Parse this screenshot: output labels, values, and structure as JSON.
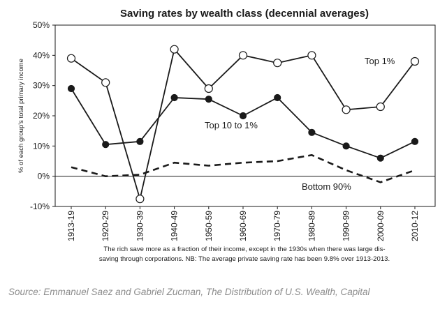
{
  "chart_data": {
    "type": "line",
    "title": "Saving rates by wealth class (decennial averages)",
    "ylabel": "% of each group's total primary income",
    "xlabel": "",
    "ylim": [
      -10,
      50
    ],
    "y_ticks": [
      "-10%",
      "0%",
      "10%",
      "20%",
      "30%",
      "40%",
      "50%"
    ],
    "y_tick_values": [
      -10,
      0,
      10,
      20,
      30,
      40,
      50
    ],
    "categories": [
      "1913-19",
      "1920-29",
      "1930-39",
      "1940-49",
      "1950-59",
      "1960-69",
      "1970-79",
      "1980-89",
      "1990-99",
      "2000-09",
      "2010-12"
    ],
    "grid": false,
    "series": [
      {
        "name": "Top 1%",
        "marker": "open-circle",
        "line": "solid",
        "values": [
          39,
          31,
          -7.5,
          42,
          29,
          40,
          37.5,
          40,
          22,
          23,
          38
        ]
      },
      {
        "name": "Top 10 to 1%",
        "marker": "filled-circle",
        "line": "solid",
        "values": [
          29,
          10.5,
          11.5,
          26,
          25.5,
          20,
          26,
          14.5,
          10,
          6,
          11.5
        ]
      },
      {
        "name": "Bottom 90%",
        "marker": "none",
        "line": "dashed",
        "values": [
          3,
          0,
          0.5,
          4.5,
          3.5,
          4.5,
          5,
          7,
          2,
          -2,
          2
        ]
      }
    ],
    "note_lines": [
      "The rich save more as a fraction of their income, except in the 1930s when there was large dis-",
      "saving through corporations. NB: The average private saving rate has been 9.8% over 1913-2013."
    ]
  },
  "source": "Source: Emmanuel Saez and Gabriel Zucman, The Distribution of U.S. Wealth, Capital",
  "colors": {
    "line": "#1a1a1a",
    "open_marker_fill": "#ffffff",
    "source_text": "#8c8c8c"
  }
}
